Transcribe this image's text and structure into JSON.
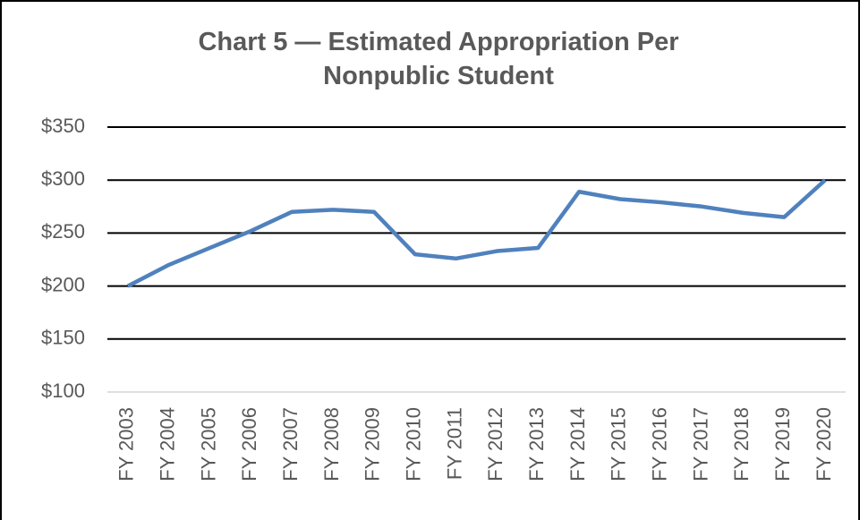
{
  "chart_data": {
    "type": "line",
    "title": "Chart 5 — Estimated Appropriation Per Nonpublic Student",
    "categories": [
      "FY 2003",
      "FY 2004",
      "FY 2005",
      "FY 2006",
      "FY 2007",
      "FY 2008",
      "FY 2009",
      "FY 2010",
      "FY 2011",
      "FY 2012",
      "FY 2013",
      "FY 2014",
      "FY 2015",
      "FY 2016",
      "FY 2017",
      "FY 2018",
      "FY 2019",
      "FY 2020"
    ],
    "values": [
      200,
      220,
      236,
      252,
      270,
      272,
      270,
      230,
      226,
      233,
      236,
      289,
      282,
      279,
      275,
      269,
      265,
      300
    ],
    "color": "#4f81bd",
    "ylim": [
      100,
      350
    ],
    "yticks": [
      {
        "value": 100,
        "label": "$100"
      },
      {
        "value": 150,
        "label": "$150"
      },
      {
        "value": 200,
        "label": "$200"
      },
      {
        "value": 250,
        "label": "$250"
      },
      {
        "value": 300,
        "label": "$300"
      },
      {
        "value": 350,
        "label": "$350"
      }
    ],
    "grid": true
  }
}
